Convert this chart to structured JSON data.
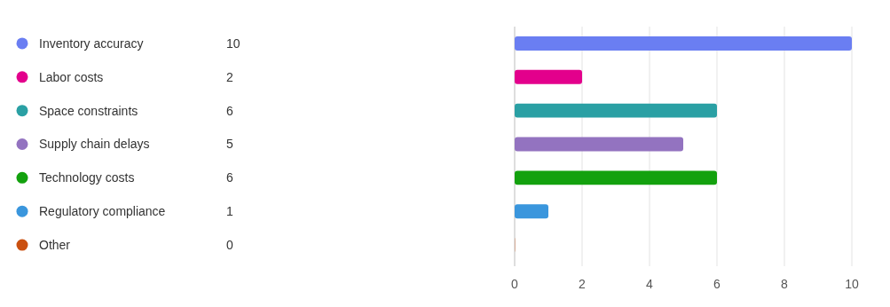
{
  "chart_data": [
    {
      "type": "other",
      "categories": [
        "Inventory accuracy",
        "Labor costs",
        "Space constraints",
        "Supply chain delays",
        "Technology costs",
        "Regulatory compliance",
        "Other"
      ],
      "annotations": [
        "10",
        "2",
        "6",
        "5",
        "6",
        "1",
        "0"
      ],
      "colors": [
        "#6a7ef2",
        "#e3008c",
        "#2aa0a4",
        "#9373c0",
        "#13a10e",
        "#3a96dd",
        "#ca5010"
      ]
    },
    {
      "type": "bar",
      "orientation": "horizontal",
      "categories": [
        null,
        null,
        null,
        null,
        null,
        null,
        null
      ],
      "values": [
        10,
        2,
        6,
        5,
        6,
        1,
        0
      ],
      "colors": [
        "#6a7ef2",
        "#e3008c",
        "#2aa0a4",
        "#9373c0",
        "#13a10e",
        "#3a96dd",
        "#ca5010"
      ],
      "xlim": [
        0,
        10
      ],
      "xticks": [
        0,
        2,
        4,
        6,
        8,
        10
      ],
      "grid": "x"
    }
  ]
}
